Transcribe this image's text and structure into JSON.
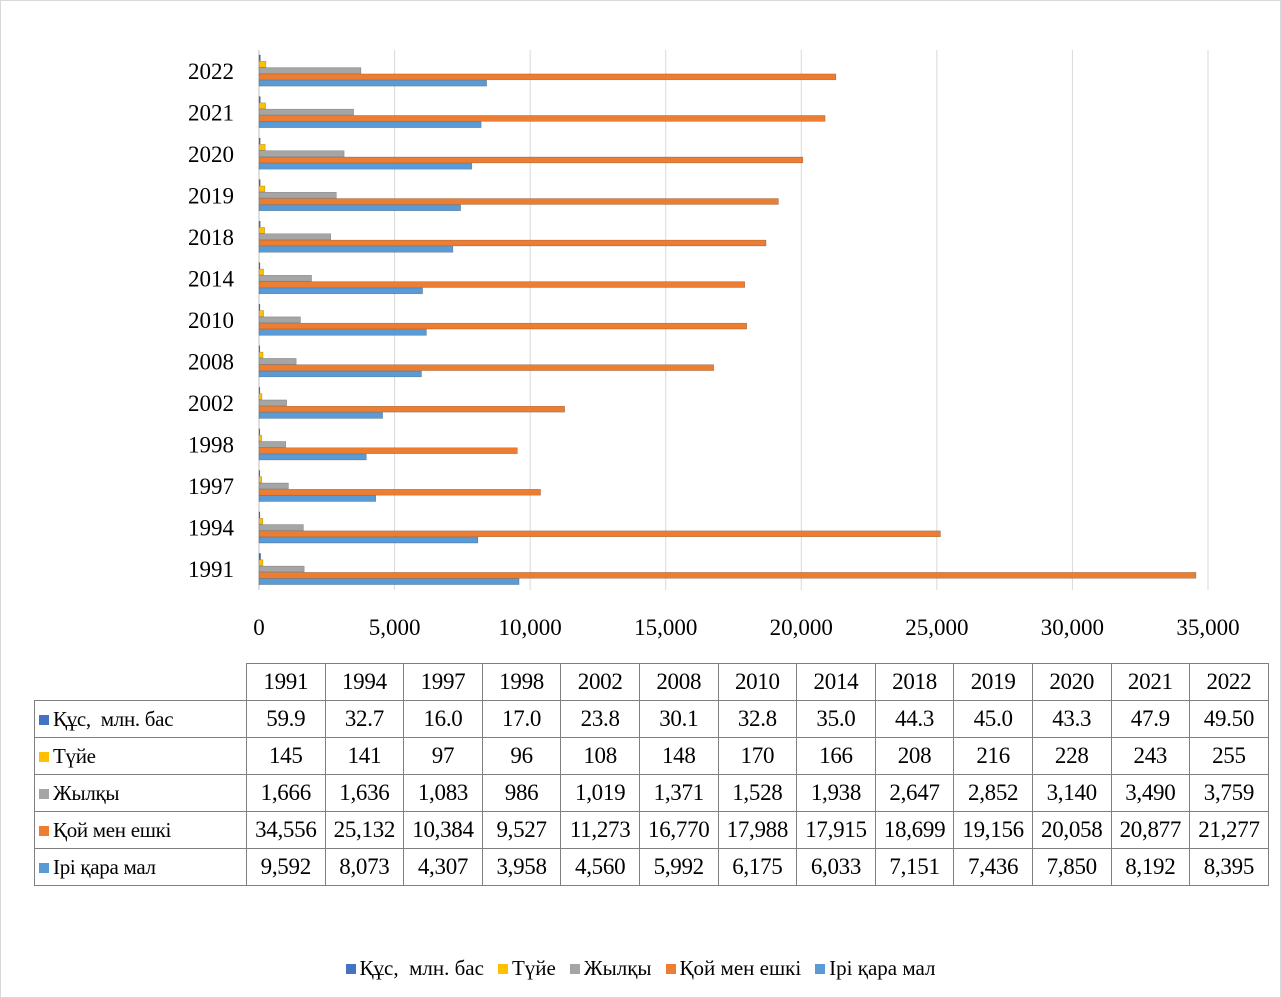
{
  "chart_data": {
    "type": "bar",
    "orientation": "horizontal",
    "categories": [
      "1991",
      "1994",
      "1997",
      "1998",
      "2002",
      "2008",
      "2010",
      "2014",
      "2018",
      "2019",
      "2020",
      "2021",
      "2022"
    ],
    "xlim": [
      0,
      35000
    ],
    "x_ticks": [
      "0",
      "5,000",
      "10,000",
      "15,000",
      "20,000",
      "25,000",
      "30,000",
      "35,000"
    ],
    "grid": "vertical",
    "legend_position": "bottom",
    "series": [
      {
        "name": "Құс,  млн. бас",
        "color": "#4472c4",
        "values": [
          59.9,
          32.7,
          16.0,
          17.0,
          23.8,
          30.1,
          32.8,
          35.0,
          44.3,
          45.0,
          43.3,
          47.9,
          49.5
        ],
        "labels": [
          "59.9",
          "32.7",
          "16.0",
          "17.0",
          "23.8",
          "30.1",
          "32.8",
          "35.0",
          "44.3",
          "45.0",
          "43.3",
          "47.9",
          "49.50"
        ]
      },
      {
        "name": "Түйе",
        "color": "#ffc000",
        "values": [
          145,
          141,
          97,
          96,
          108,
          148,
          170,
          166,
          208,
          216,
          228,
          243,
          255
        ],
        "labels": [
          "145",
          "141",
          "97",
          "96",
          "108",
          "148",
          "170",
          "166",
          "208",
          "216",
          "228",
          "243",
          "255"
        ]
      },
      {
        "name": "Жылқы",
        "color": "#a5a5a5",
        "values": [
          1666,
          1636,
          1083,
          986,
          1019,
          1371,
          1528,
          1938,
          2647,
          2852,
          3140,
          3490,
          3759
        ],
        "labels": [
          "1,666",
          "1,636",
          "1,083",
          "986",
          "1,019",
          "1,371",
          "1,528",
          "1,938",
          "2,647",
          "2,852",
          "3,140",
          "3,490",
          "3,759"
        ]
      },
      {
        "name": "Қой мен ешкі",
        "color": "#ed7d31",
        "values": [
          34556,
          25132,
          10384,
          9527,
          11273,
          16770,
          17988,
          17915,
          18699,
          19156,
          20058,
          20877,
          21277
        ],
        "labels": [
          "34,556",
          "25,132",
          "10,384",
          "9,527",
          "11,273",
          "16,770",
          "17,988",
          "17,915",
          "18,699",
          "19,156",
          "20,058",
          "20,877",
          "21,277"
        ]
      },
      {
        "name": "Ірі қара мал",
        "color": "#5b9bd5",
        "values": [
          9592,
          8073,
          4307,
          3958,
          4560,
          5992,
          6175,
          6033,
          7151,
          7436,
          7850,
          8192,
          8395
        ],
        "labels": [
          "9,592",
          "8,073",
          "4,307",
          "3,958",
          "4,560",
          "5,992",
          "6,175",
          "6,033",
          "7,151",
          "7,436",
          "7,850",
          "8,192",
          "8,395"
        ]
      }
    ]
  }
}
